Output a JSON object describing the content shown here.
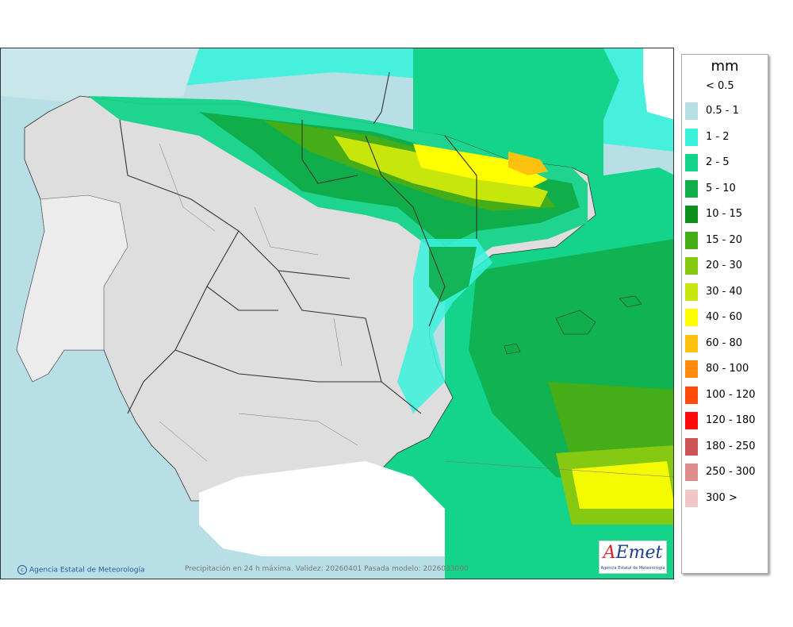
{
  "legend": {
    "unit": "mm",
    "under_label": "< 0.5",
    "classes": [
      {
        "label": "0.5 - 1",
        "color": "#b8dfe6"
      },
      {
        "label": "1 - 2",
        "color": "#3af2dc"
      },
      {
        "label": "2 - 5",
        "color": "#14d38a"
      },
      {
        "label": "5 - 10",
        "color": "#0fae4a"
      },
      {
        "label": "10 - 15",
        "color": "#0b8f1d"
      },
      {
        "label": "15 - 20",
        "color": "#44ad18"
      },
      {
        "label": "20 - 30",
        "color": "#86c913"
      },
      {
        "label": "30 - 40",
        "color": "#c6e60c"
      },
      {
        "label": "40 - 60",
        "color": "#ffff00"
      },
      {
        "label": "60 - 80",
        "color": "#ffc10f"
      },
      {
        "label": "80 - 100",
        "color": "#ff8a0c"
      },
      {
        "label": "100 - 120",
        "color": "#ff4a0a"
      },
      {
        "label": "120 - 180",
        "color": "#ff0a0a"
      },
      {
        "label": "180 - 250",
        "color": "#cc5555"
      },
      {
        "label": "250 - 300",
        "color": "#dd8c8c"
      },
      {
        "label": "300 >",
        "color": "#f0c7c7"
      }
    ]
  },
  "credit": "Agencia Estatal de Meteorología",
  "caption": "Precipitación en 24 h máxima. Validez: 20260401 Pasada modelo: 2026033000",
  "logo": {
    "wordmark_first": "A",
    "wordmark_rest": "Emet",
    "subtitle": "Agencia Estatal de Meteorología"
  }
}
